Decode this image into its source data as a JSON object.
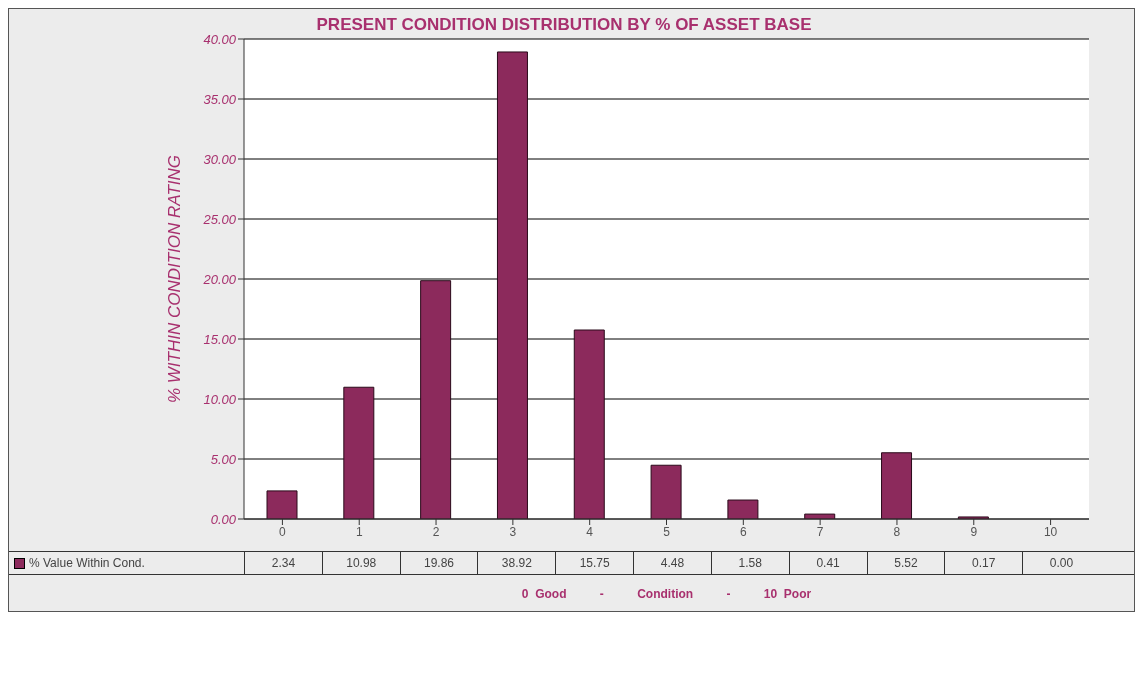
{
  "chart_data": {
    "type": "bar",
    "title": "PRESENT CONDITION DISTRIBUTION BY % OF ASSET BASE",
    "ylabel": "% WITHIN CONDITION RATING",
    "xlabel": "0  Good          -          Condition          -          10  Poor",
    "categories": [
      "0",
      "1",
      "2",
      "3",
      "4",
      "5",
      "6",
      "7",
      "8",
      "9",
      "10"
    ],
    "series": [
      {
        "name": "% Value Within Cond.",
        "color": "#8c2a5c",
        "values": [
          2.34,
          10.98,
          19.86,
          38.92,
          15.75,
          4.48,
          1.58,
          0.41,
          5.52,
          0.17,
          0.0
        ],
        "value_labels": [
          "2.34",
          "10.98",
          "19.86",
          "38.92",
          "15.75",
          "4.48",
          "1.58",
          "0.41",
          "5.52",
          "0.17",
          "0.00"
        ]
      }
    ],
    "ylim": [
      0,
      40
    ],
    "yticks": [
      {
        "value": 0,
        "label": "0.00"
      },
      {
        "value": 5,
        "label": "5.00"
      },
      {
        "value": 10,
        "label": "10.00"
      },
      {
        "value": 15,
        "label": "15.00"
      },
      {
        "value": 20,
        "label": "20.00"
      },
      {
        "value": 25,
        "label": "25.00"
      },
      {
        "value": 30,
        "label": "30.00"
      },
      {
        "value": 35,
        "label": "35.00"
      },
      {
        "value": 40,
        "label": "40.00"
      }
    ],
    "grid": "y",
    "legend": "bottom"
  }
}
